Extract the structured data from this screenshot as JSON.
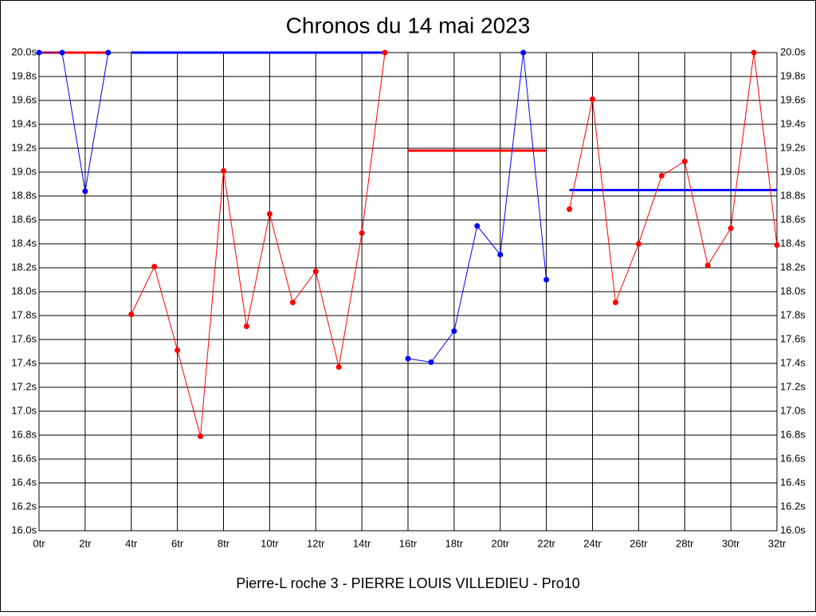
{
  "chart_data": {
    "type": "line",
    "title": "Chronos du 14 mai 2023",
    "subtitle": "Pierre-L roche 3 - PIERRE LOUIS VILLEDIEU - Pro10",
    "xlim": [
      0,
      32
    ],
    "ylim": [
      16.0,
      20.0
    ],
    "grid": true,
    "xticks": [
      {
        "value": 0,
        "label": "0tr"
      },
      {
        "value": 2,
        "label": "2tr"
      },
      {
        "value": 4,
        "label": "4tr"
      },
      {
        "value": 6,
        "label": "6tr"
      },
      {
        "value": 8,
        "label": "8tr"
      },
      {
        "value": 10,
        "label": "10tr"
      },
      {
        "value": 12,
        "label": "12tr"
      },
      {
        "value": 14,
        "label": "14tr"
      },
      {
        "value": 16,
        "label": "16tr"
      },
      {
        "value": 18,
        "label": "18tr"
      },
      {
        "value": 20,
        "label": "20tr"
      },
      {
        "value": 22,
        "label": "22tr"
      },
      {
        "value": 24,
        "label": "24tr"
      },
      {
        "value": 26,
        "label": "26tr"
      },
      {
        "value": 28,
        "label": "28tr"
      },
      {
        "value": 30,
        "label": "30tr"
      },
      {
        "value": 32,
        "label": "32tr"
      }
    ],
    "yticks": [
      {
        "value": 16.0,
        "label": "16.0s"
      },
      {
        "value": 16.2,
        "label": "16.2s"
      },
      {
        "value": 16.4,
        "label": "16.4s"
      },
      {
        "value": 16.6,
        "label": "16.6s"
      },
      {
        "value": 16.8,
        "label": "16.8s"
      },
      {
        "value": 17.0,
        "label": "17.0s"
      },
      {
        "value": 17.2,
        "label": "17.2s"
      },
      {
        "value": 17.4,
        "label": "17.4s"
      },
      {
        "value": 17.6,
        "label": "17.6s"
      },
      {
        "value": 17.8,
        "label": "17.8s"
      },
      {
        "value": 18.0,
        "label": "18.0s"
      },
      {
        "value": 18.2,
        "label": "18.2s"
      },
      {
        "value": 18.4,
        "label": "18.4s"
      },
      {
        "value": 18.6,
        "label": "18.6s"
      },
      {
        "value": 18.8,
        "label": "18.8s"
      },
      {
        "value": 19.0,
        "label": "19.0s"
      },
      {
        "value": 19.2,
        "label": "19.2s"
      },
      {
        "value": 19.4,
        "label": "19.4s"
      },
      {
        "value": 19.6,
        "label": "19.6s"
      },
      {
        "value": 19.8,
        "label": "19.8s"
      },
      {
        "value": 20.0,
        "label": "20.0s"
      }
    ],
    "series": [
      {
        "color": "#ff0000",
        "markers": false,
        "x": [
          0,
          3
        ],
        "values": [
          20.0,
          20.0
        ]
      },
      {
        "color": "#0000ff",
        "markers": true,
        "x": [
          0,
          1,
          2,
          3
        ],
        "values": [
          20.0,
          20.0,
          18.84,
          20.0
        ]
      },
      {
        "color": "#0000ff",
        "markers": false,
        "x": [
          4,
          15
        ],
        "values": [
          20.0,
          20.0
        ]
      },
      {
        "color": "#ff0000",
        "markers": true,
        "x": [
          4,
          5,
          6,
          7,
          8,
          9,
          10,
          11,
          12,
          13,
          14,
          15
        ],
        "values": [
          17.81,
          18.21,
          17.51,
          16.79,
          19.01,
          17.71,
          18.65,
          17.91,
          18.17,
          17.37,
          18.49,
          20.0
        ]
      },
      {
        "color": "#ff0000",
        "markers": false,
        "x": [
          16,
          22
        ],
        "values": [
          19.18,
          19.18
        ]
      },
      {
        "color": "#0000ff",
        "markers": true,
        "x": [
          16,
          17,
          18,
          19,
          20,
          21,
          22
        ],
        "values": [
          17.44,
          17.41,
          17.67,
          18.55,
          18.31,
          20.0,
          18.1
        ]
      },
      {
        "color": "#0000ff",
        "markers": false,
        "x": [
          23,
          32
        ],
        "values": [
          18.85,
          18.85
        ]
      },
      {
        "color": "#ff0000",
        "markers": true,
        "x": [
          23,
          24,
          25,
          26,
          27,
          28,
          29,
          30,
          31,
          32
        ],
        "values": [
          18.69,
          19.61,
          17.91,
          18.4,
          18.97,
          19.09,
          18.22,
          18.53,
          20.0,
          18.39
        ]
      }
    ]
  }
}
